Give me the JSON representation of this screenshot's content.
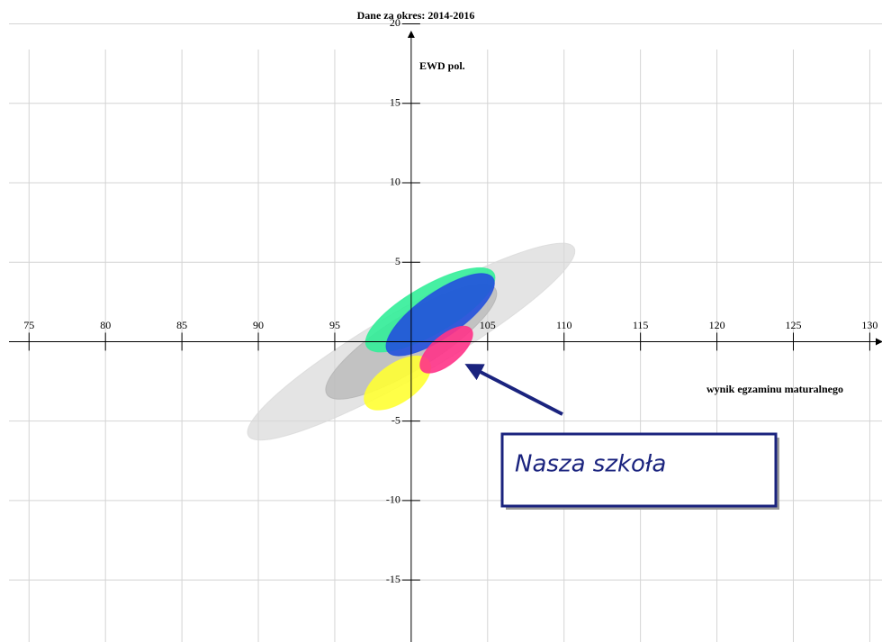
{
  "chart_data": {
    "type": "ellipse",
    "title": "Dane za okres: 2014-2016",
    "x_label": "wynik egzaminu maturalnego",
    "y_label": "EWD pol.",
    "annotation": "Nasza szkoła",
    "xlim": [
      73.1,
      130.8
    ],
    "ylim": [
      -18.9,
      21.5
    ],
    "xticks": [
      75,
      80,
      85,
      90,
      95,
      105,
      110,
      115,
      120,
      125,
      130
    ],
    "yticks": [
      20,
      15,
      10,
      5,
      -5,
      -10,
      -15
    ],
    "grid": true,
    "series": [
      {
        "color": "#d9d9d9",
        "opacity": 0.7,
        "cx": 100,
        "cy": 0,
        "rx": 12.3,
        "ry": 2.1,
        "angle": 30
      },
      {
        "color": "#b3b3b3",
        "opacity": 0.7,
        "cx": 100,
        "cy": 0,
        "rx": 6.5,
        "ry": 1.7,
        "angle": 32
      },
      {
        "color": "#33ee99",
        "opacity": 0.9,
        "cx": 101.25,
        "cy": 2.0,
        "rx": 4.8,
        "ry": 1.5,
        "angle": 30
      },
      {
        "color": "#2250dd",
        "opacity": 0.9,
        "cx": 101.9,
        "cy": 1.7,
        "rx": 4.2,
        "ry": 1.4,
        "angle": 35
      },
      {
        "color": "#ffff33",
        "opacity": 0.9,
        "cx": 99.1,
        "cy": -2.6,
        "rx": 2.5,
        "ry": 1.2,
        "angle": 35
      },
      {
        "color": "#ff3388",
        "opacity": 0.9,
        "cx": 102.3,
        "cy": -0.5,
        "rx": 2.1,
        "ry": 0.9,
        "angle": 40
      }
    ]
  }
}
